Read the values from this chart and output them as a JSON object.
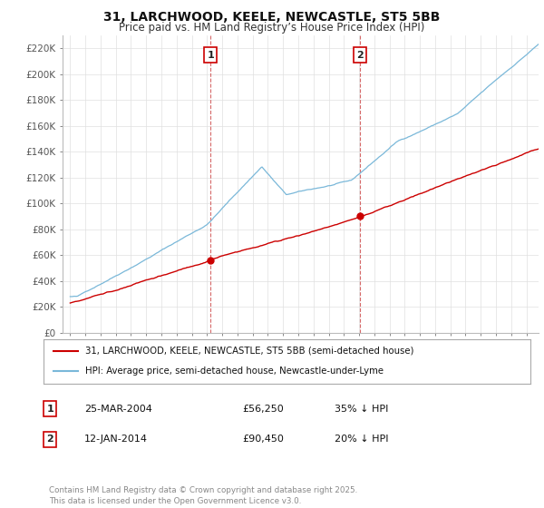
{
  "title": "31, LARCHWOOD, KEELE, NEWCASTLE, ST5 5BB",
  "subtitle": "Price paid vs. HM Land Registry’s House Price Index (HPI)",
  "title_fontsize": 10,
  "subtitle_fontsize": 8.5,
  "hpi_color": "#7ab8d9",
  "price_color": "#cc0000",
  "sale1_date_x": 2004.23,
  "sale1_price": 56250,
  "sale2_date_x": 2014.04,
  "sale2_price": 90450,
  "ylim": [
    0,
    230000
  ],
  "xlim": [
    1994.5,
    2025.8
  ],
  "yticks": [
    0,
    20000,
    40000,
    60000,
    80000,
    100000,
    120000,
    140000,
    160000,
    180000,
    200000,
    220000
  ],
  "ytick_labels": [
    "£0",
    "£20K",
    "£40K",
    "£60K",
    "£80K",
    "£100K",
    "£120K",
    "£140K",
    "£160K",
    "£180K",
    "£200K",
    "£220K"
  ],
  "legend_label1": "31, LARCHWOOD, KEELE, NEWCASTLE, ST5 5BB (semi-detached house)",
  "legend_label2": "HPI: Average price, semi-detached house, Newcastle-under-Lyme",
  "table_row1": [
    "1",
    "25-MAR-2004",
    "£56,250",
    "35% ↓ HPI"
  ],
  "table_row2": [
    "2",
    "12-JAN-2014",
    "£90,450",
    "20% ↓ HPI"
  ],
  "footnote": "Contains HM Land Registry data © Crown copyright and database right 2025.\nThis data is licensed under the Open Government Licence v3.0.",
  "bg_color": "#ffffff",
  "grid_color": "#e0e0e0"
}
